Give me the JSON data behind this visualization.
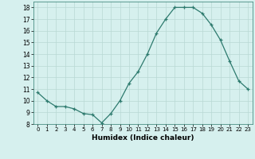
{
  "x": [
    0,
    1,
    2,
    3,
    4,
    5,
    6,
    7,
    8,
    9,
    10,
    11,
    12,
    13,
    14,
    15,
    16,
    17,
    18,
    19,
    20,
    21,
    22,
    23
  ],
  "y": [
    10.7,
    10.0,
    9.5,
    9.5,
    9.3,
    8.9,
    8.8,
    8.1,
    8.9,
    10.0,
    11.5,
    12.5,
    14.0,
    15.8,
    17.0,
    18.0,
    18.0,
    18.0,
    17.5,
    16.5,
    15.2,
    13.4,
    11.7,
    11.0
  ],
  "xlabel": "Humidex (Indice chaleur)",
  "ylim": [
    8,
    18.5
  ],
  "xlim": [
    -0.5,
    23.5
  ],
  "yticks": [
    8,
    9,
    10,
    11,
    12,
    13,
    14,
    15,
    16,
    17,
    18
  ],
  "xticks": [
    0,
    1,
    2,
    3,
    4,
    5,
    6,
    7,
    8,
    9,
    10,
    11,
    12,
    13,
    14,
    15,
    16,
    17,
    18,
    19,
    20,
    21,
    22,
    23
  ],
  "line_color": "#2d7a6e",
  "marker": "+",
  "bg_color": "#d6f0ee",
  "grid_color": "#b8d8d4",
  "axis_bg": "#d6f0ee"
}
